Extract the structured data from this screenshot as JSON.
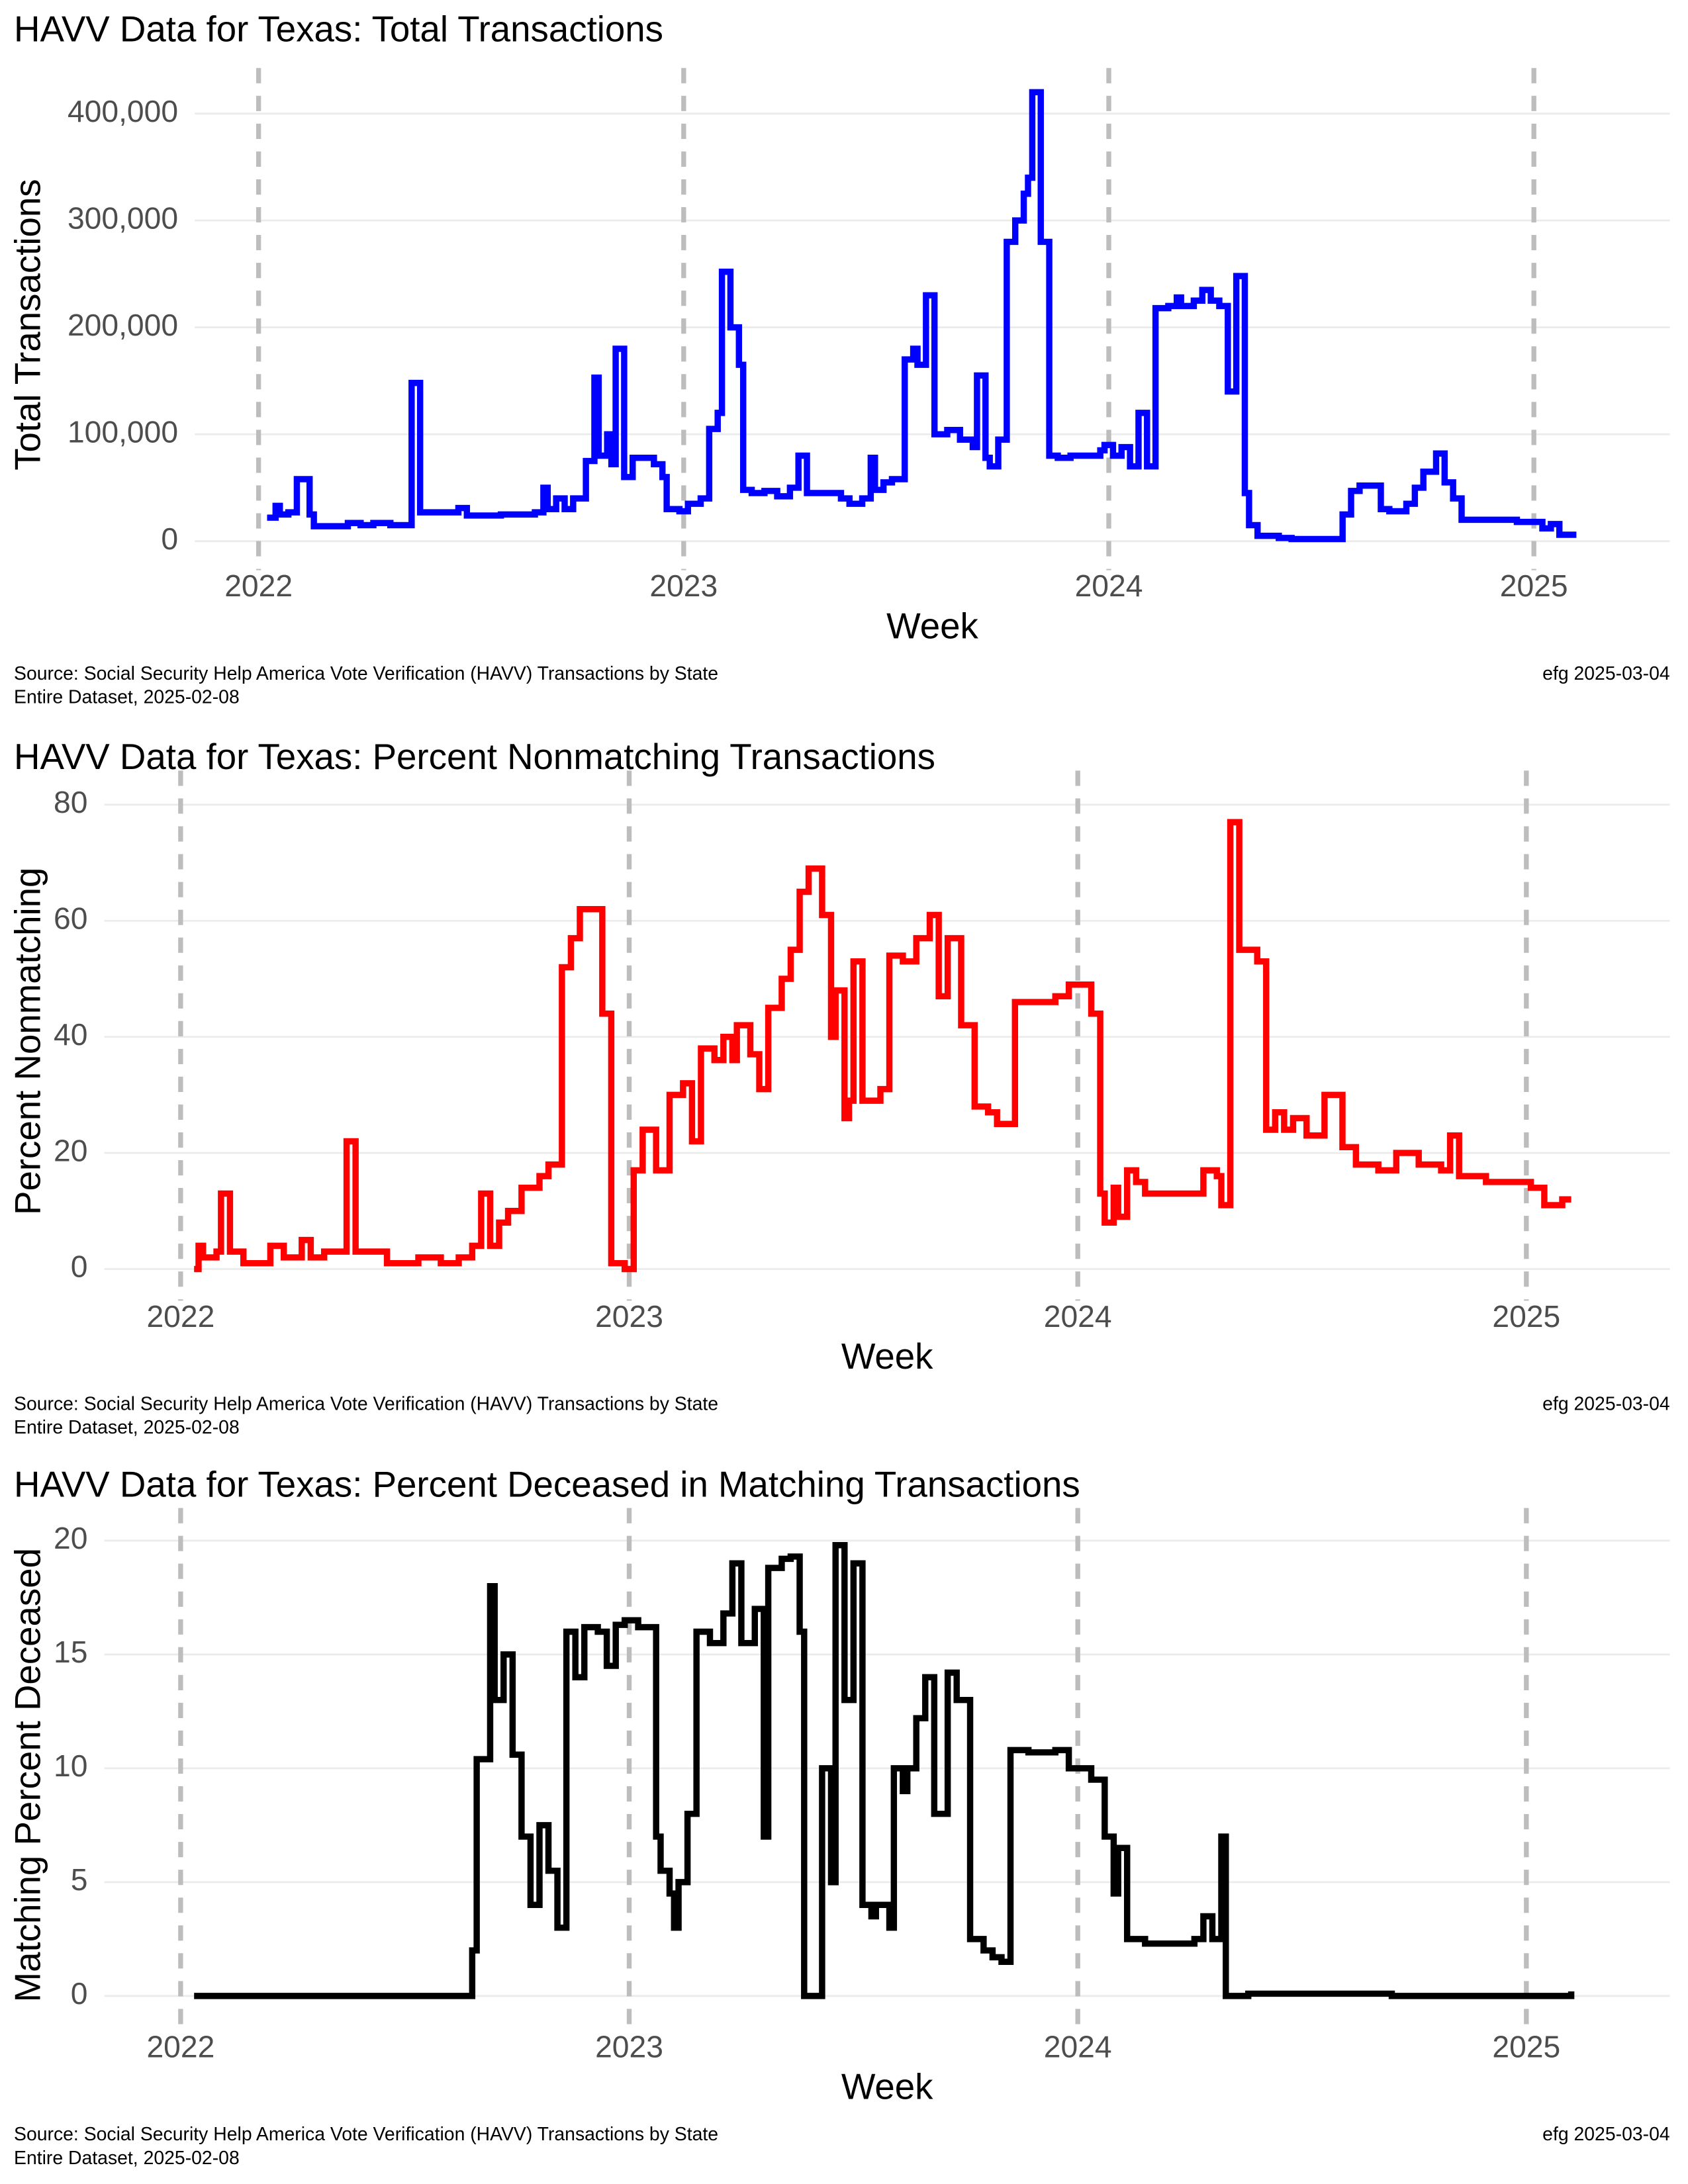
{
  "chart_data": [
    {
      "type": "line",
      "step": true,
      "title": "HAVV Data for Texas:  Total Transactions",
      "x_label": "Week",
      "y_label": "Total Transactions",
      "source": [
        "Source:  Social Security Help America Vote Verification (HAVV) Transactions by State",
        "Entire Dataset, 2025-02-08"
      ],
      "credit": "efg 2025-03-04",
      "color": "#0000ff",
      "grid": true,
      "xlim": [
        2021.85,
        2025.32
      ],
      "xticks": [
        2022,
        2023,
        2024,
        2025
      ],
      "ylim": [
        -22000,
        427000
      ],
      "yticks": [
        0,
        {
          "value": 100000,
          "label": "100,000"
        },
        {
          "value": 200000,
          "label": "200,000"
        },
        {
          "value": 300000,
          "label": "300,000"
        },
        {
          "value": 400000,
          "label": "400,000"
        }
      ],
      "x": [
        2022.02,
        2022.04,
        2022.05,
        2022.07,
        2022.09,
        2022.12,
        2022.13,
        2022.21,
        2022.24,
        2022.27,
        2022.31,
        2022.36,
        2022.38,
        2022.47,
        2022.49,
        2022.57,
        2022.65,
        2022.67,
        2022.68,
        2022.7,
        2022.72,
        2022.74,
        2022.77,
        2022.79,
        2022.8,
        2022.82,
        2022.83,
        2022.84,
        2022.86,
        2022.88,
        2022.93,
        2022.95,
        2022.96,
        2022.99,
        2023.01,
        2023.04,
        2023.06,
        2023.08,
        2023.09,
        2023.11,
        2023.13,
        2023.14,
        2023.16,
        2023.19,
        2023.22,
        2023.25,
        2023.27,
        2023.29,
        2023.34,
        2023.37,
        2023.39,
        2023.42,
        2023.44,
        2023.45,
        2023.47,
        2023.49,
        2023.52,
        2023.54,
        2023.55,
        2023.57,
        2023.59,
        2023.62,
        2023.65,
        2023.68,
        2023.69,
        2023.71,
        2023.72,
        2023.74,
        2023.76,
        2023.78,
        2023.8,
        2023.81,
        2023.82,
        2023.84,
        2023.86,
        2023.88,
        2023.91,
        2023.98,
        2023.99,
        2024.01,
        2024.03,
        2024.05,
        2024.07,
        2024.09,
        2024.11,
        2024.14,
        2024.16,
        2024.17,
        2024.2,
        2024.22,
        2024.24,
        2024.26,
        2024.28,
        2024.3,
        2024.32,
        2024.33,
        2024.35,
        2024.4,
        2024.43,
        2024.54,
        2024.55,
        2024.57,
        2024.59,
        2024.61,
        2024.64,
        2024.66,
        2024.7,
        2024.72,
        2024.74,
        2024.77,
        2024.79,
        2024.81,
        2024.83,
        2024.91,
        2024.96,
        2025.0,
        2025.02,
        2025.04,
        2025.06,
        2025.1
      ],
      "values": [
        22000,
        33000,
        25000,
        27000,
        58000,
        25000,
        14000,
        17000,
        15000,
        17000,
        15000,
        148000,
        27000,
        31000,
        24000,
        25000,
        27000,
        50000,
        30000,
        40000,
        30000,
        40000,
        75000,
        153000,
        80000,
        100000,
        72000,
        180000,
        60000,
        78000,
        72000,
        60000,
        30000,
        28000,
        35000,
        40000,
        105000,
        120000,
        252000,
        200000,
        165000,
        48000,
        45000,
        47000,
        42000,
        50000,
        80000,
        45000,
        45000,
        40000,
        35000,
        40000,
        78000,
        48000,
        55000,
        58000,
        170000,
        180000,
        165000,
        230000,
        100000,
        104000,
        95000,
        88000,
        155000,
        78000,
        70000,
        95000,
        280000,
        300000,
        325000,
        340000,
        420000,
        280000,
        80000,
        78000,
        80000,
        85000,
        90000,
        80000,
        88000,
        70000,
        120000,
        70000,
        218000,
        220000,
        228000,
        220000,
        225000,
        235000,
        225000,
        220000,
        140000,
        248000,
        45000,
        15000,
        5000,
        3000,
        2000,
        2000,
        25000,
        47000,
        52000,
        52000,
        30000,
        28000,
        35000,
        50000,
        65000,
        82000,
        55000,
        40000,
        20000,
        20000,
        18000,
        18000,
        12000,
        16000,
        6000,
        6000
      ]
    },
    {
      "type": "line",
      "step": true,
      "title": "HAVV Data for Texas:  Percent Nonmatching Transactions",
      "x_label": "Week",
      "y_label": "Percent Nonmatching",
      "source": [
        "Source:  Social Security Help America Vote Verification (HAVV) Transactions by State",
        "Entire Dataset, 2025-02-08"
      ],
      "credit": "efg 2025-03-04",
      "color": "#ff0000",
      "grid": true,
      "xlim": [
        2021.83,
        2025.32
      ],
      "xticks": [
        2022,
        2023,
        2024,
        2025
      ],
      "ylim": [
        -4.5,
        83
      ],
      "yticks": [
        0,
        20,
        40,
        60,
        80
      ],
      "x": [
        2022.03,
        2022.04,
        2022.05,
        2022.08,
        2022.09,
        2022.11,
        2022.14,
        2022.2,
        2022.23,
        2022.27,
        2022.29,
        2022.32,
        2022.37,
        2022.39,
        2022.44,
        2022.46,
        2022.53,
        2022.58,
        2022.62,
        2022.65,
        2022.67,
        2022.69,
        2022.71,
        2022.73,
        2022.76,
        2022.8,
        2022.82,
        2022.85,
        2022.87,
        2022.89,
        2022.93,
        2022.94,
        2022.96,
        2022.99,
        2023.01,
        2023.03,
        2023.06,
        2023.09,
        2023.12,
        2023.14,
        2023.16,
        2023.19,
        2023.21,
        2023.23,
        2023.24,
        2023.27,
        2023.29,
        2023.31,
        2023.34,
        2023.36,
        2023.38,
        2023.4,
        2023.43,
        2023.45,
        2023.46,
        2023.48,
        2023.49,
        2023.5,
        2023.52,
        2023.56,
        2023.58,
        2023.61,
        2023.64,
        2023.67,
        2023.69,
        2023.71,
        2023.74,
        2023.77,
        2023.8,
        2023.82,
        2023.86,
        2023.9,
        2023.95,
        2023.98,
        2024.02,
        2024.03,
        2024.05,
        2024.06,
        2024.08,
        2024.09,
        2024.11,
        2024.13,
        2024.15,
        2024.26,
        2024.28,
        2024.31,
        2024.32,
        2024.34,
        2024.36,
        2024.4,
        2024.42,
        2024.44,
        2024.46,
        2024.48,
        2024.51,
        2024.55,
        2024.59,
        2024.62,
        2024.67,
        2024.71,
        2024.76,
        2024.81,
        2024.83,
        2024.85,
        2024.91,
        2025.01,
        2025.04,
        2025.08,
        2025.1
      ],
      "values": [
        0,
        4,
        2,
        3,
        13,
        3,
        1,
        4,
        2,
        5,
        2,
        3,
        22,
        3,
        3,
        1,
        2,
        1,
        2,
        4,
        13,
        4,
        8,
        10,
        14,
        16,
        18,
        52,
        57,
        62,
        62,
        44,
        1,
        0,
        17,
        24,
        17,
        30,
        32,
        22,
        38,
        36,
        40,
        36,
        42,
        37,
        31,
        45,
        50,
        55,
        65,
        69,
        61,
        40,
        48,
        26,
        29,
        53,
        29,
        31,
        54,
        53,
        57,
        61,
        47,
        57,
        42,
        28,
        27,
        25,
        46,
        46,
        47,
        49,
        49,
        44,
        13,
        8,
        14,
        9,
        17,
        15,
        13,
        13,
        17,
        16,
        11,
        77,
        55,
        53,
        24,
        27,
        24,
        26,
        23,
        30,
        21,
        18,
        17,
        20,
        18,
        17,
        23,
        16,
        15,
        14,
        11,
        12,
        12
      ]
    },
    {
      "type": "line",
      "step": true,
      "title": "HAVV Data for Texas:  Percent Deceased in Matching Transactions",
      "x_label": "Week",
      "y_label": "Matching Percent Deceased",
      "source": [
        "Source:  Social Security Help America Vote Verification (HAVV) Transactions by State",
        "Entire Dataset, 2025-02-08"
      ],
      "credit": "efg 2025-03-04",
      "color": "#000000",
      "grid": true,
      "xlim": [
        2021.83,
        2025.32
      ],
      "xticks": [
        2022,
        2023,
        2024,
        2025
      ],
      "ylim": [
        -1.3,
        20.7
      ],
      "yticks": [
        0,
        5,
        10,
        15,
        20
      ],
      "x": [
        2022.03,
        2022.65,
        2022.66,
        2022.69,
        2022.7,
        2022.72,
        2022.74,
        2022.76,
        2022.78,
        2022.8,
        2022.82,
        2022.84,
        2022.86,
        2022.88,
        2022.9,
        2022.93,
        2022.95,
        2022.97,
        2022.99,
        2023.02,
        2023.06,
        2023.07,
        2023.09,
        2023.1,
        2023.11,
        2023.13,
        2023.15,
        2023.18,
        2023.21,
        2023.23,
        2023.25,
        2023.28,
        2023.3,
        2023.31,
        2023.34,
        2023.36,
        2023.38,
        2023.39,
        2023.41,
        2023.43,
        2023.45,
        2023.46,
        2023.48,
        2023.5,
        2023.52,
        2023.54,
        2023.55,
        2023.58,
        2023.59,
        2023.61,
        2023.62,
        2023.64,
        2023.66,
        2023.68,
        2023.71,
        2023.73,
        2023.76,
        2023.79,
        2023.81,
        2023.83,
        2023.85,
        2023.89,
        2023.95,
        2023.98,
        2024.03,
        2024.06,
        2024.08,
        2024.09,
        2024.11,
        2024.15,
        2024.22,
        2024.26,
        2024.28,
        2024.3,
        2024.32,
        2024.33,
        2024.38,
        2024.7,
        2025.01,
        2025.08,
        2025.1
      ],
      "values": [
        0,
        2,
        10.4,
        18,
        13,
        15,
        10.6,
        7,
        4,
        7.5,
        5.5,
        3,
        16,
        14,
        16.2,
        16,
        14.5,
        16.3,
        16.5,
        16.2,
        7,
        5.5,
        4.5,
        3,
        5,
        8,
        16,
        15.5,
        16.8,
        19,
        15.5,
        17,
        7,
        18.8,
        19.2,
        19.3,
        16,
        0,
        0,
        10,
        5,
        19.8,
        13,
        19,
        4,
        3.5,
        4,
        3,
        10,
        9,
        10,
        12.2,
        14,
        8,
        14.2,
        13,
        2.5,
        2,
        1.7,
        1.5,
        10.8,
        10.7,
        10.8,
        10,
        9.5,
        7,
        4.5,
        6.5,
        2.5,
        2.3,
        2.3,
        2.5,
        3.5,
        2.5,
        7,
        0,
        0.1,
        0,
        0,
        0,
        0.2
      ]
    }
  ]
}
